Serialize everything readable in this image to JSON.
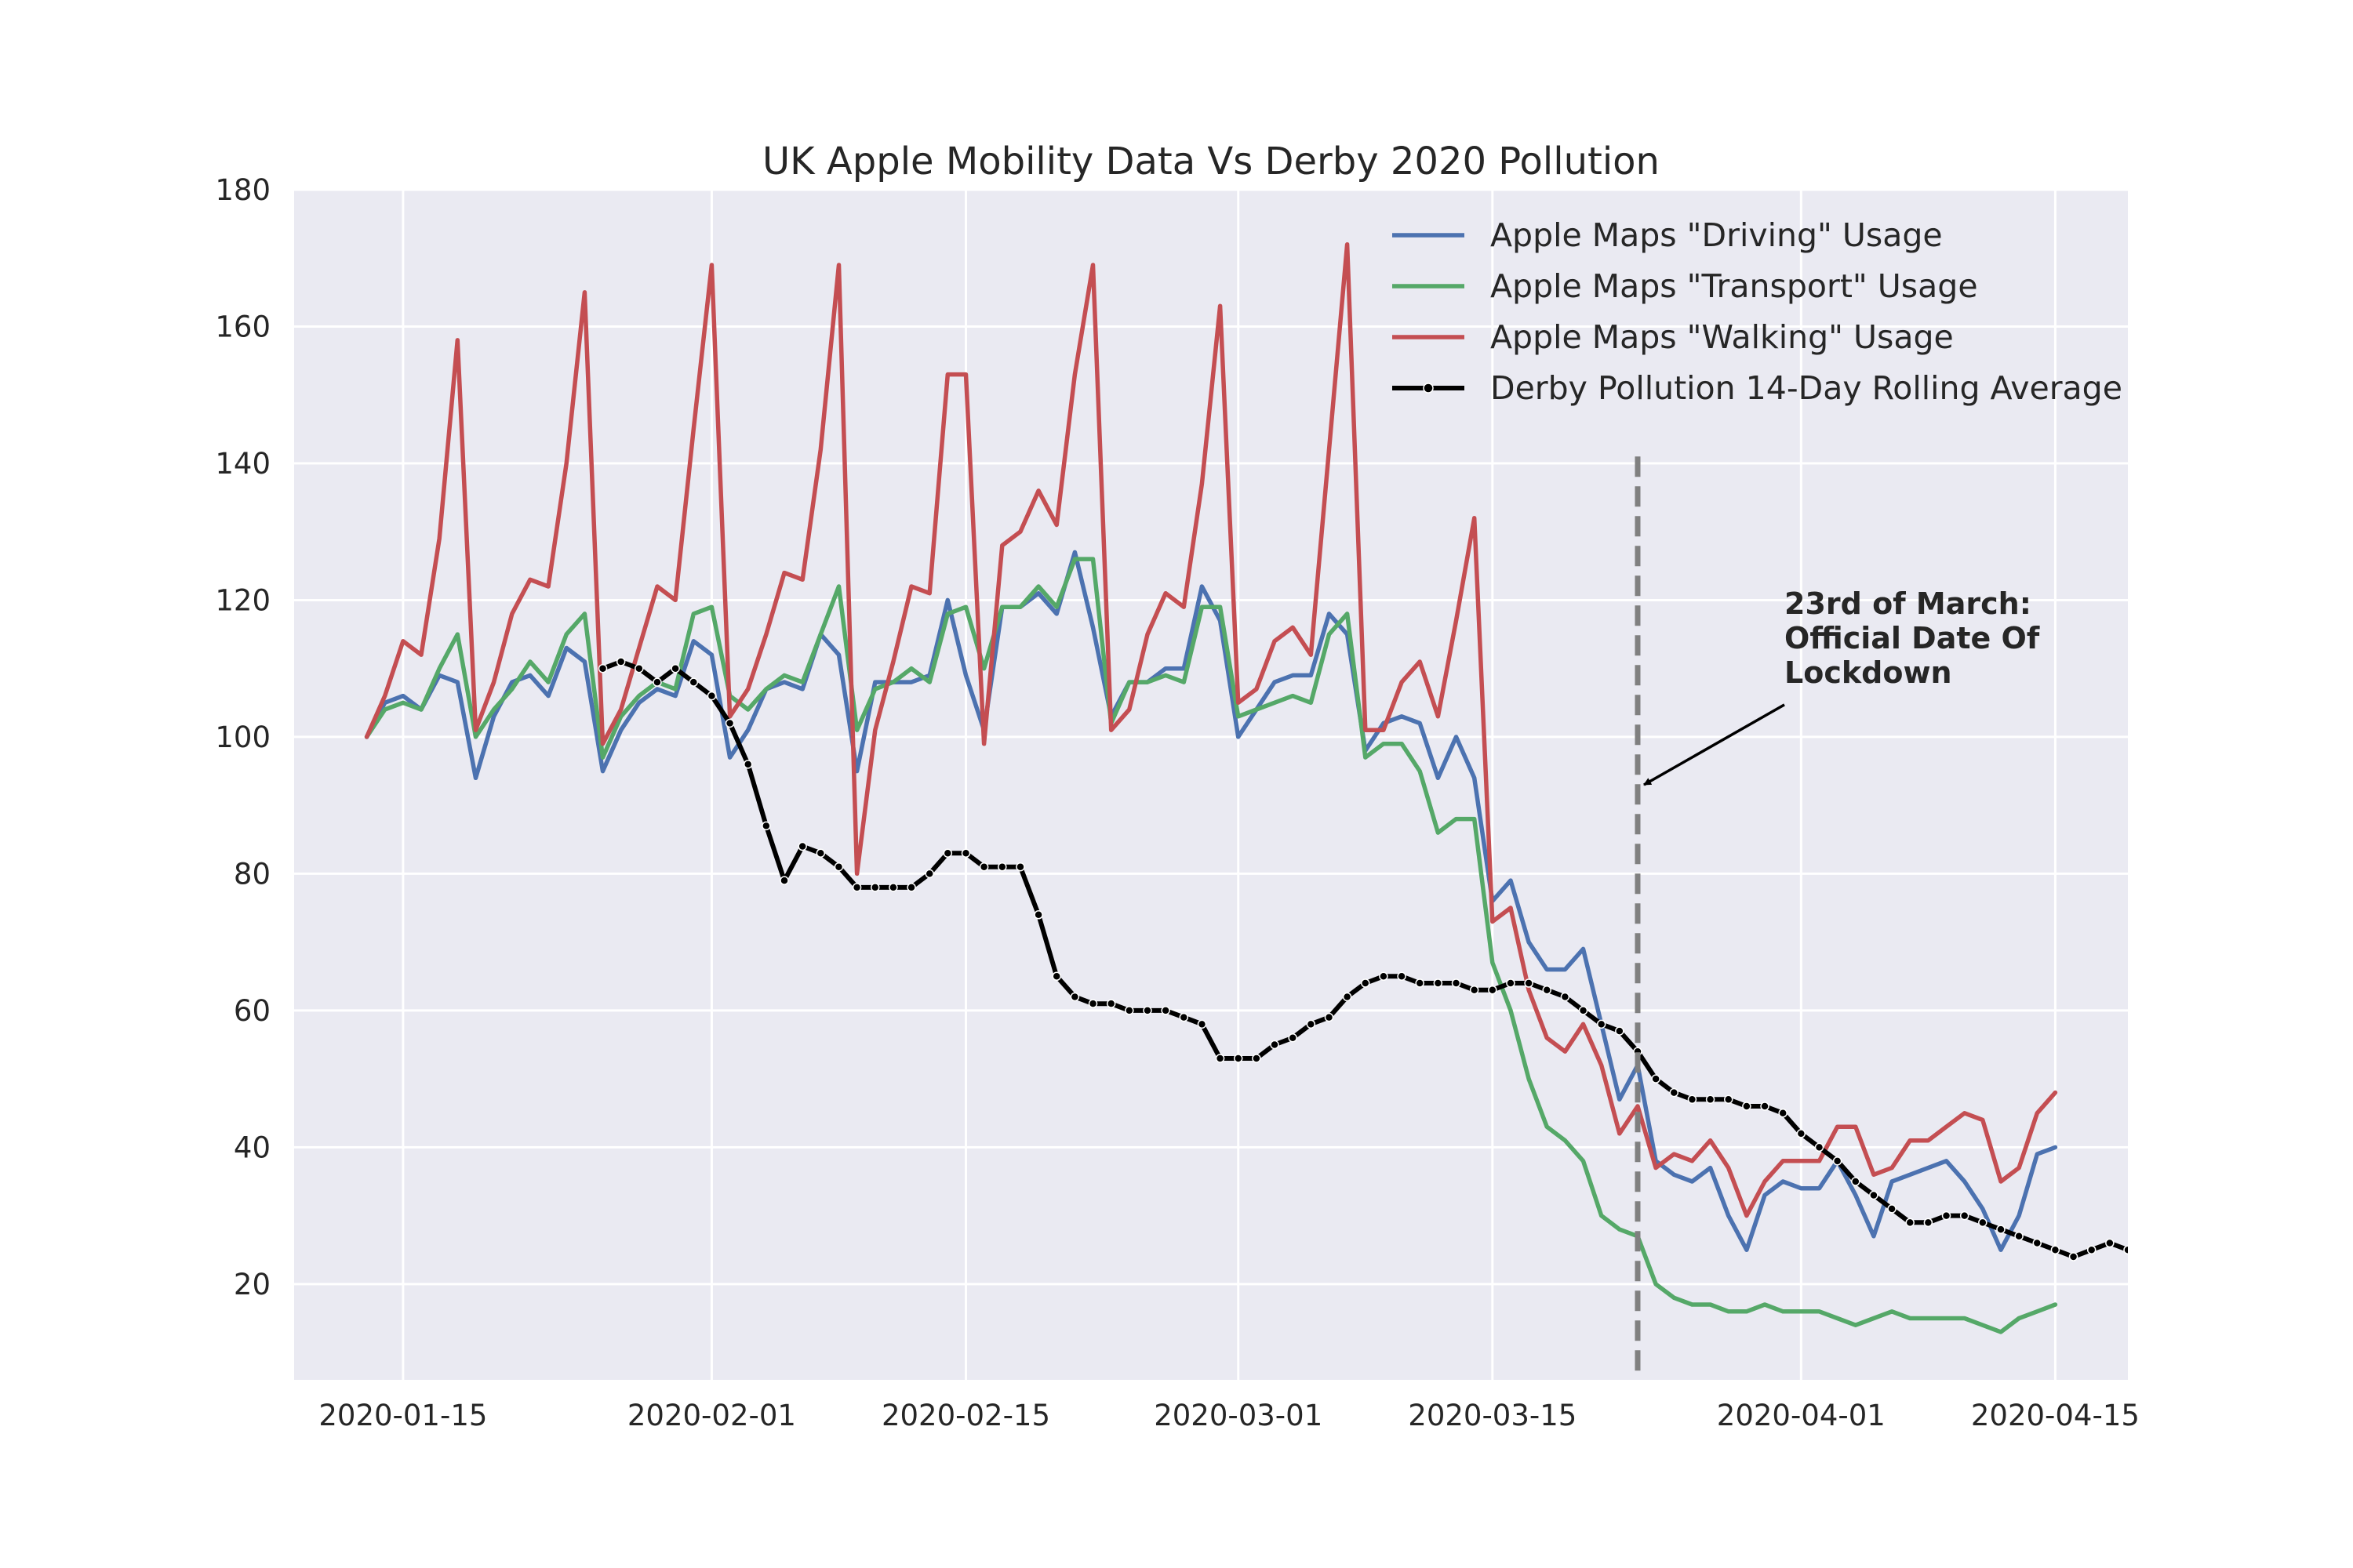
{
  "chart_data": {
    "type": "line",
    "title": "UK Apple Mobility Data Vs Derby 2020 Pollution",
    "xlabel": "",
    "ylabel": "",
    "x_start": "2020-01-13",
    "x_end": "2020-04-15",
    "xlim": [
      "2020-01-09",
      "2020-04-19"
    ],
    "ylim": [
      6,
      180
    ],
    "x_ticks": [
      "2020-01-15",
      "2020-02-01",
      "2020-02-15",
      "2020-03-01",
      "2020-03-15",
      "2020-04-01",
      "2020-04-15"
    ],
    "y_ticks": [
      20,
      40,
      60,
      80,
      100,
      120,
      140,
      160,
      180
    ],
    "grid": true,
    "legend_position": "top-right",
    "colors": {
      "background": "#EAEAF2",
      "grid": "#FFFFFF",
      "driving": "#4C72B0",
      "transport": "#55A868",
      "walking": "#C44E52",
      "pollution": "#000000",
      "lockdown": "#808080"
    },
    "series": [
      {
        "name": "Apple Maps \"Driving\" Usage",
        "key": "driving",
        "values": [
          100,
          105,
          106,
          104,
          109,
          108,
          94,
          103,
          108,
          109,
          106,
          113,
          111,
          95,
          101,
          105,
          107,
          106,
          114,
          112,
          97,
          101,
          107,
          108,
          107,
          115,
          112,
          95,
          108,
          108,
          108,
          109,
          120,
          109,
          101,
          119,
          119,
          121,
          118,
          127,
          116,
          103,
          108,
          108,
          110,
          110,
          122,
          117,
          100,
          104,
          108,
          109,
          109,
          118,
          115,
          98,
          102,
          103,
          102,
          94,
          100,
          94,
          76,
          79,
          70,
          66,
          66,
          69,
          58,
          47,
          52,
          38,
          36,
          35,
          37,
          30,
          25,
          33,
          35,
          34,
          34,
          38,
          33,
          27,
          35,
          36,
          37,
          38,
          35,
          31,
          25,
          30,
          39,
          40
        ]
      },
      {
        "name": "Apple Maps \"Transport\" Usage",
        "key": "transport",
        "values": [
          100,
          104,
          105,
          104,
          110,
          115,
          100,
          104,
          107,
          111,
          108,
          115,
          118,
          97,
          103,
          106,
          108,
          107,
          118,
          119,
          106,
          104,
          107,
          109,
          108,
          115,
          122,
          101,
          107,
          108,
          110,
          108,
          118,
          119,
          110,
          119,
          119,
          122,
          119,
          126,
          126,
          102,
          108,
          108,
          109,
          108,
          119,
          119,
          103,
          104,
          105,
          106,
          105,
          115,
          118,
          97,
          99,
          99,
          95,
          86,
          88,
          88,
          67,
          60,
          50,
          43,
          41,
          38,
          30,
          28,
          27,
          20,
          18,
          17,
          17,
          16,
          16,
          17,
          16,
          16,
          16,
          15,
          14,
          15,
          16,
          15,
          15,
          15,
          15,
          14,
          13,
          15,
          16,
          17
        ]
      },
      {
        "name": "Apple Maps \"Walking\" Usage",
        "key": "walking",
        "values": [
          100,
          106,
          114,
          112,
          129,
          158,
          101,
          108,
          118,
          123,
          122,
          140,
          165,
          99,
          104,
          113,
          122,
          120,
          145,
          169,
          103,
          107,
          115,
          124,
          123,
          142,
          169,
          80,
          101,
          111,
          122,
          121,
          153,
          153,
          99,
          128,
          130,
          136,
          131,
          153,
          169,
          101,
          104,
          115,
          121,
          119,
          137,
          163,
          105,
          107,
          114,
          116,
          112,
          142,
          172,
          101,
          101,
          108,
          111,
          103,
          117,
          132,
          73,
          75,
          63,
          56,
          54,
          58,
          52,
          42,
          46,
          37,
          39,
          38,
          41,
          37,
          30,
          35,
          38,
          38,
          38,
          43,
          43,
          36,
          37,
          41,
          41,
          43,
          45,
          44,
          35,
          37,
          45,
          48
        ]
      },
      {
        "name": "Derby Pollution 14-Day Rolling Average",
        "key": "pollution",
        "x_start": "2020-01-26",
        "values": [
          110,
          111,
          110,
          108,
          110,
          108,
          106,
          102,
          96,
          87,
          79,
          84,
          83,
          81,
          78,
          78,
          78,
          78,
          80,
          83,
          83,
          81,
          81,
          81,
          74,
          65,
          62,
          61,
          61,
          60,
          60,
          60,
          59,
          58,
          53,
          53,
          53,
          55,
          56,
          58,
          59,
          62,
          64,
          65,
          65,
          64,
          64,
          64,
          63,
          63,
          64,
          64,
          63,
          62,
          60,
          58,
          57,
          54,
          50,
          48,
          47,
          47,
          47,
          46,
          46,
          45,
          42,
          40,
          38,
          35,
          33,
          31,
          29,
          29,
          30,
          30,
          29,
          28,
          27,
          26,
          25,
          24,
          25,
          26,
          25,
          24,
          24,
          25
        ]
      }
    ],
    "annotation": {
      "text_lines": [
        "23rd of March:",
        "Official Date Of",
        "Lockdown"
      ],
      "date": "2020-03-23",
      "arrow_target_y": 93,
      "text_anchor_date": "2020-03-30",
      "text_anchor_y": 118
    }
  }
}
